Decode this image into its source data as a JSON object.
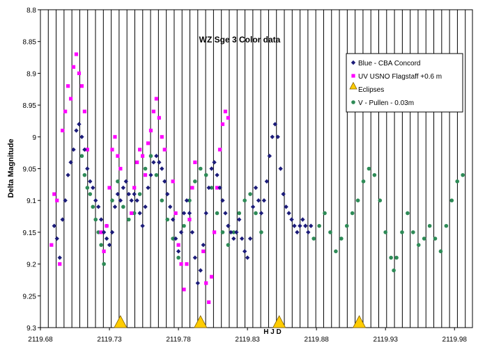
{
  "chart_data": {
    "type": "scatter",
    "title": "WZ Sge 3 Color data",
    "xlabel": "H J D",
    "ylabel": "Delta Magnitude",
    "xlim": [
      2119.68,
      2119.993
    ],
    "ylim": [
      8.8,
      9.3
    ],
    "y_inverted": true,
    "x_ticks": [
      "2119.68",
      "2119.73",
      "2119.78",
      "2119.83",
      "2119.88",
      "2119.93",
      "2119.98"
    ],
    "y_ticks": [
      "8.8",
      "8.85",
      "8.9",
      "8.95",
      "9",
      "9.05",
      "9.1",
      "9.15",
      "9.2",
      "9.25",
      "9.3"
    ],
    "x_gridline_step": 0.0057,
    "grid": "vertical",
    "legend_position": "right",
    "series": [
      {
        "name": "Blue - CBA Concord",
        "marker": "diamond",
        "color": "#1c1c7a",
        "points": [
          [
            2119.69,
            9.14
          ],
          [
            2119.692,
            9.16
          ],
          [
            2119.694,
            9.19
          ],
          [
            2119.696,
            9.13
          ],
          [
            2119.698,
            9.1
          ],
          [
            2119.7,
            9.06
          ],
          [
            2119.702,
            9.04
          ],
          [
            2119.704,
            9.02
          ],
          [
            2119.706,
            8.99
          ],
          [
            2119.708,
            8.98
          ],
          [
            2119.71,
            9.0
          ],
          [
            2119.712,
            9.02
          ],
          [
            2119.714,
            9.05
          ],
          [
            2119.716,
            9.07
          ],
          [
            2119.718,
            9.08
          ],
          [
            2119.72,
            9.1
          ],
          [
            2119.722,
            9.11
          ],
          [
            2119.724,
            9.13
          ],
          [
            2119.726,
            9.15
          ],
          [
            2119.728,
            9.16
          ],
          [
            2119.73,
            9.17
          ],
          [
            2119.732,
            9.15
          ],
          [
            2119.734,
            9.11
          ],
          [
            2119.736,
            9.09
          ],
          [
            2119.738,
            9.1
          ],
          [
            2119.74,
            9.08
          ],
          [
            2119.742,
            9.07
          ],
          [
            2119.744,
            9.09
          ],
          [
            2119.746,
            9.1
          ],
          [
            2119.748,
            9.09
          ],
          [
            2119.75,
            9.1
          ],
          [
            2119.752,
            9.12
          ],
          [
            2119.754,
            9.14
          ],
          [
            2119.756,
            9.11
          ],
          [
            2119.758,
            9.08
          ],
          [
            2119.76,
            9.06
          ],
          [
            2119.762,
            9.04
          ],
          [
            2119.764,
            9.03
          ],
          [
            2119.766,
            9.04
          ],
          [
            2119.768,
            9.05
          ],
          [
            2119.77,
            9.07
          ],
          [
            2119.772,
            9.09
          ],
          [
            2119.774,
            9.11
          ],
          [
            2119.776,
            9.13
          ],
          [
            2119.778,
            9.16
          ],
          [
            2119.78,
            9.18
          ],
          [
            2119.782,
            9.15
          ],
          [
            2119.784,
            9.12
          ],
          [
            2119.786,
            9.1
          ],
          [
            2119.788,
            9.12
          ],
          [
            2119.79,
            9.15
          ],
          [
            2119.792,
            9.19
          ],
          [
            2119.794,
            9.23
          ],
          [
            2119.796,
            9.21
          ],
          [
            2119.798,
            9.17
          ],
          [
            2119.8,
            9.12
          ],
          [
            2119.802,
            9.08
          ],
          [
            2119.804,
            9.05
          ],
          [
            2119.806,
            9.04
          ],
          [
            2119.808,
            9.06
          ],
          [
            2119.81,
            9.08
          ],
          [
            2119.812,
            9.1
          ],
          [
            2119.814,
            9.12
          ],
          [
            2119.816,
            9.14
          ],
          [
            2119.818,
            9.15
          ],
          [
            2119.82,
            9.16
          ],
          [
            2119.822,
            9.15
          ],
          [
            2119.824,
            9.13
          ],
          [
            2119.826,
            9.16
          ],
          [
            2119.828,
            9.18
          ],
          [
            2119.83,
            9.19
          ],
          [
            2119.832,
            9.16
          ],
          [
            2119.834,
            9.11
          ],
          [
            2119.836,
            9.08
          ],
          [
            2119.838,
            9.1
          ],
          [
            2119.84,
            9.12
          ],
          [
            2119.842,
            9.1
          ],
          [
            2119.844,
            9.07
          ],
          [
            2119.846,
            9.03
          ],
          [
            2119.848,
            9.0
          ],
          [
            2119.85,
            8.98
          ],
          [
            2119.852,
            9.0
          ],
          [
            2119.854,
            9.05
          ],
          [
            2119.856,
            9.09
          ],
          [
            2119.858,
            9.11
          ],
          [
            2119.86,
            9.12
          ],
          [
            2119.862,
            9.13
          ],
          [
            2119.864,
            9.14
          ],
          [
            2119.866,
            9.15
          ],
          [
            2119.868,
            9.14
          ],
          [
            2119.87,
            9.13
          ],
          [
            2119.872,
            9.14
          ],
          [
            2119.874,
            9.15
          ],
          [
            2119.876,
            9.14
          ]
        ]
      },
      {
        "name": "UV   USNO Flagstaff +0.6 m",
        "marker": "square",
        "color": "#ff00ff",
        "points": [
          [
            2119.688,
            9.17
          ],
          [
            2119.69,
            9.09
          ],
          [
            2119.692,
            9.1
          ],
          [
            2119.694,
            9.2
          ],
          [
            2119.696,
            8.99
          ],
          [
            2119.698,
            8.96
          ],
          [
            2119.7,
            8.92
          ],
          [
            2119.702,
            8.94
          ],
          [
            2119.704,
            8.89
          ],
          [
            2119.706,
            8.87
          ],
          [
            2119.708,
            8.9
          ],
          [
            2119.71,
            8.92
          ],
          [
            2119.712,
            8.96
          ],
          [
            2119.714,
            9.02
          ],
          [
            2119.724,
            9.15
          ],
          [
            2119.726,
            9.18
          ],
          [
            2119.728,
            9.14
          ],
          [
            2119.73,
            9.08
          ],
          [
            2119.732,
            9.02
          ],
          [
            2119.734,
            9.0
          ],
          [
            2119.736,
            9.03
          ],
          [
            2119.738,
            9.05
          ],
          [
            2119.746,
            9.12
          ],
          [
            2119.748,
            9.08
          ],
          [
            2119.75,
            9.04
          ],
          [
            2119.752,
            9.02
          ],
          [
            2119.754,
            9.03
          ],
          [
            2119.756,
            9.06
          ],
          [
            2119.758,
            9.01
          ],
          [
            2119.76,
            8.99
          ],
          [
            2119.762,
            8.96
          ],
          [
            2119.764,
            8.94
          ],
          [
            2119.766,
            8.97
          ],
          [
            2119.768,
            9.0
          ],
          [
            2119.77,
            9.02
          ],
          [
            2119.776,
            9.07
          ],
          [
            2119.778,
            9.12
          ],
          [
            2119.78,
            9.17
          ],
          [
            2119.782,
            9.2
          ],
          [
            2119.784,
            9.24
          ],
          [
            2119.786,
            9.2
          ],
          [
            2119.788,
            9.13
          ],
          [
            2119.79,
            9.08
          ],
          [
            2119.792,
            9.04
          ],
          [
            2119.798,
            9.18
          ],
          [
            2119.8,
            9.23
          ],
          [
            2119.802,
            9.26
          ],
          [
            2119.804,
            9.22
          ],
          [
            2119.806,
            9.15
          ],
          [
            2119.808,
            9.08
          ],
          [
            2119.81,
            9.02
          ],
          [
            2119.812,
            8.98
          ],
          [
            2119.814,
            8.96
          ],
          [
            2119.816,
            8.97
          ]
        ]
      },
      {
        "name": "V - Pullen - 0.03m",
        "marker": "circle",
        "color": "#2e8b57",
        "points": [
          [
            2119.71,
            9.03
          ],
          [
            2119.712,
            9.06
          ],
          [
            2119.714,
            9.08
          ],
          [
            2119.716,
            9.09
          ],
          [
            2119.718,
            9.11
          ],
          [
            2119.72,
            9.13
          ],
          [
            2119.722,
            9.15
          ],
          [
            2119.724,
            9.17
          ],
          [
            2119.726,
            9.2
          ],
          [
            2119.728,
            9.14
          ],
          [
            2119.732,
            9.1
          ],
          [
            2119.736,
            9.07
          ],
          [
            2119.74,
            9.11
          ],
          [
            2119.744,
            9.13
          ],
          [
            2119.748,
            9.12
          ],
          [
            2119.752,
            9.09
          ],
          [
            2119.756,
            9.05
          ],
          [
            2119.76,
            9.03
          ],
          [
            2119.764,
            9.06
          ],
          [
            2119.768,
            9.1
          ],
          [
            2119.772,
            9.13
          ],
          [
            2119.776,
            9.16
          ],
          [
            2119.78,
            9.19
          ],
          [
            2119.784,
            9.14
          ],
          [
            2119.788,
            9.1
          ],
          [
            2119.792,
            9.07
          ],
          [
            2119.796,
            9.05
          ],
          [
            2119.8,
            9.06
          ],
          [
            2119.804,
            9.08
          ],
          [
            2119.808,
            9.12
          ],
          [
            2119.812,
            9.15
          ],
          [
            2119.816,
            9.17
          ],
          [
            2119.82,
            9.15
          ],
          [
            2119.824,
            9.12
          ],
          [
            2119.828,
            9.1
          ],
          [
            2119.832,
            9.09
          ],
          [
            2119.836,
            9.12
          ],
          [
            2119.84,
            9.15
          ],
          [
            2119.878,
            9.16
          ],
          [
            2119.882,
            9.14
          ],
          [
            2119.886,
            9.12
          ],
          [
            2119.89,
            9.15
          ],
          [
            2119.894,
            9.18
          ],
          [
            2119.898,
            9.16
          ],
          [
            2119.902,
            9.14
          ],
          [
            2119.906,
            9.12
          ],
          [
            2119.91,
            9.1
          ],
          [
            2119.914,
            9.07
          ],
          [
            2119.918,
            9.05
          ],
          [
            2119.922,
            9.06
          ],
          [
            2119.926,
            9.1
          ],
          [
            2119.93,
            9.15
          ],
          [
            2119.934,
            9.19
          ],
          [
            2119.936,
            9.21
          ],
          [
            2119.938,
            9.19
          ],
          [
            2119.942,
            9.15
          ],
          [
            2119.946,
            9.12
          ],
          [
            2119.95,
            9.15
          ],
          [
            2119.954,
            9.17
          ],
          [
            2119.958,
            9.16
          ],
          [
            2119.962,
            9.14
          ],
          [
            2119.966,
            9.16
          ],
          [
            2119.97,
            9.18
          ],
          [
            2119.974,
            9.14
          ],
          [
            2119.978,
            9.1
          ],
          [
            2119.982,
            9.07
          ],
          [
            2119.986,
            9.06
          ]
        ]
      },
      {
        "name": "Eclipses",
        "marker": "triangle",
        "color": "#ffcc00",
        "points": [
          [
            2119.738,
            9.3
          ],
          [
            2119.796,
            9.3
          ],
          [
            2119.853,
            9.3
          ],
          [
            2119.911,
            9.3
          ]
        ]
      }
    ],
    "legend_order": [
      "Blue - CBA Concord",
      "UV   USNO Flagstaff +0.6 m",
      "Eclipses",
      "V - Pullen - 0.03m"
    ]
  }
}
